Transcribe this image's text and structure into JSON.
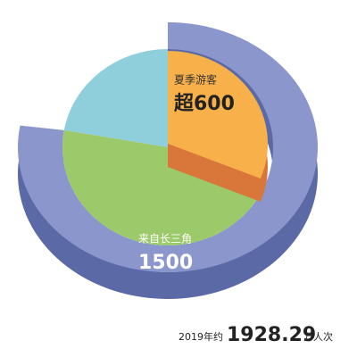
{
  "chart_data": {
    "type": "pie",
    "total": 1928.29,
    "total_prefix": "2019年约",
    "total_unit": "万人次",
    "series": [
      {
        "name": "夏季游客",
        "value": 600,
        "value_label": "超600",
        "color": "#f7b04a"
      },
      {
        "name": "来自长三角",
        "value": 1500,
        "color": "#8a96cc"
      }
    ]
  }
}
